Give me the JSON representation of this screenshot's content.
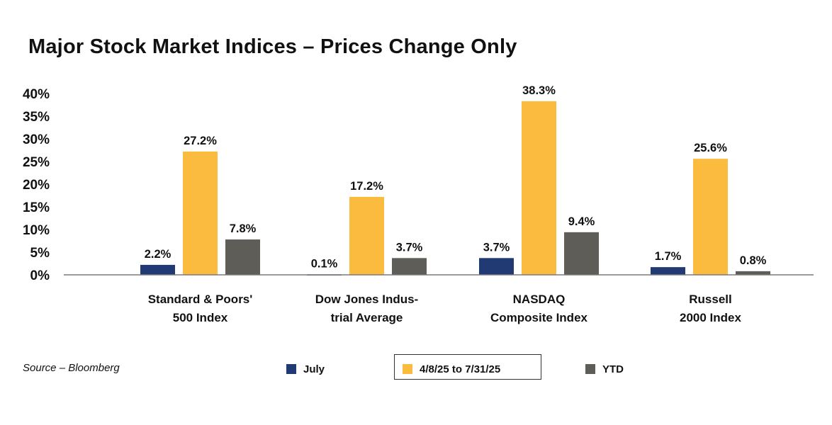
{
  "chart_data": {
    "type": "bar",
    "title": "Major Stock Market Indices – Prices Change Only",
    "categories": [
      [
        "Standard & Poors'",
        "500 Index"
      ],
      [
        "Dow Jones Indus-",
        "trial Average"
      ],
      [
        "NASDAQ",
        "Composite Index"
      ],
      [
        "Russell",
        "2000 Index"
      ]
    ],
    "series": [
      {
        "name": "July",
        "color": "#223a73",
        "values": [
          2.2,
          0.1,
          3.7,
          1.7
        ],
        "labels": [
          "2.2%",
          "0.1%",
          "3.7%",
          "1.7%"
        ]
      },
      {
        "name": "4/8/25 to 7/31/25",
        "color": "#fbbb3f",
        "values": [
          27.2,
          17.2,
          38.3,
          25.6
        ],
        "labels": [
          "27.2%",
          "17.2%",
          "38.3%",
          "25.6%"
        ]
      },
      {
        "name": "YTD",
        "color": "#5f5d57",
        "values": [
          7.8,
          3.7,
          9.4,
          0.8
        ],
        "labels": [
          "7.8%",
          "3.7%",
          "9.4%",
          "0.8%"
        ]
      }
    ],
    "ylim": [
      0,
      40
    ],
    "yticks": [
      "0%",
      "5%",
      "10%",
      "15%",
      "20%",
      "25%",
      "30%",
      "35%",
      "40%"
    ],
    "legend_position": "bottom",
    "grid": false,
    "source": "Source – Bloomberg"
  }
}
